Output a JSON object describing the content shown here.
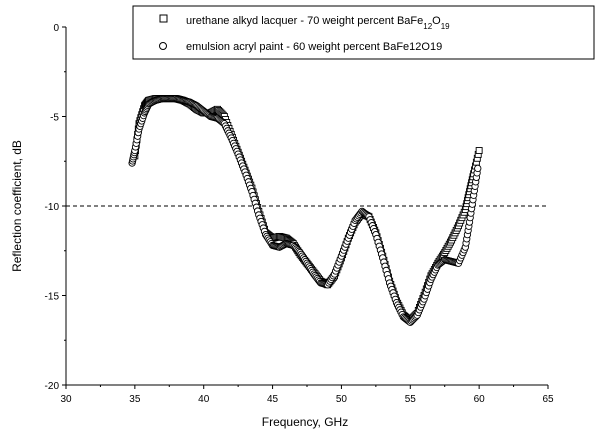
{
  "chart_data": {
    "type": "scatter",
    "xlabel": "Frequency, GHz",
    "ylabel": "Reflection coefficient, dB",
    "xlim": [
      30,
      65
    ],
    "ylim": [
      -20,
      0
    ],
    "xticks": [
      30,
      35,
      40,
      45,
      50,
      55,
      60,
      65
    ],
    "yticks": [
      0,
      -5,
      -10,
      -15,
      -20
    ],
    "xtick_labels": [
      "30",
      "35",
      "40",
      "45",
      "50",
      "55",
      "60",
      "65"
    ],
    "ytick_labels": [
      "0",
      "-5",
      "-10",
      "-15",
      "-20"
    ],
    "reference_line": {
      "y": -10,
      "style": "dashed"
    },
    "legend": {
      "placement": "top-right"
    },
    "series": [
      {
        "name": "urethane alkyd lacquer  - 70 weight percent BaFe12O19",
        "label_parts": {
          "text": "urethane alkyd lacquer  - 70 weight percent BaFe",
          "sub1": "12",
          "mid": "O",
          "sub2": "19"
        },
        "marker": "square",
        "x": [
          35,
          35.3,
          35.7,
          36,
          36.5,
          37,
          37.5,
          38,
          38.5,
          39,
          39.5,
          40,
          40.5,
          41,
          41.5,
          42,
          42.5,
          43,
          43.5,
          44,
          44.5,
          45,
          45.5,
          46,
          46.5,
          47,
          47.5,
          48,
          48.5,
          49,
          49.5,
          50,
          50.5,
          51,
          51.5,
          52,
          52.5,
          53,
          53.5,
          54,
          54.5,
          55,
          55.5,
          56,
          56.5,
          57,
          57.5,
          58,
          58.5,
          59,
          59.3,
          59.6,
          60
        ],
        "y": [
          -7.2,
          -5.4,
          -4.4,
          -4.1,
          -4.0,
          -4.0,
          -4.0,
          -4.0,
          -4.1,
          -4.3,
          -4.6,
          -4.8,
          -4.8,
          -4.6,
          -5.0,
          -6.0,
          -7.0,
          -8.0,
          -9.0,
          -10.3,
          -11.5,
          -11.8,
          -11.7,
          -11.8,
          -12.1,
          -12.7,
          -13.2,
          -13.7,
          -14.2,
          -14.4,
          -13.9,
          -12.9,
          -11.8,
          -10.9,
          -10.4,
          -10.6,
          -11.5,
          -12.8,
          -14.2,
          -15.3,
          -16.1,
          -16.4,
          -16.0,
          -15.0,
          -13.9,
          -13.2,
          -12.6,
          -11.9,
          -11.1,
          -10.2,
          -9.2,
          -8.2,
          -6.9
        ]
      },
      {
        "name": "emulsion acryl paint  - 60 weight percent BaFe12O19",
        "marker": "circle",
        "x": [
          34.8,
          35,
          35.3,
          35.7,
          36,
          36.5,
          37,
          37.5,
          38,
          38.5,
          39,
          39.5,
          40,
          40.5,
          41,
          41.5,
          42,
          42.5,
          43,
          43.5,
          44,
          44.5,
          45,
          45.5,
          46,
          46.5,
          47,
          47.5,
          48,
          48.5,
          49,
          49.5,
          50,
          50.5,
          51,
          51.5,
          52,
          52.5,
          53,
          53.5,
          54,
          54.5,
          55,
          55.5,
          56,
          56.5,
          57,
          57.5,
          58,
          58.5,
          59,
          59.3,
          59.6,
          59.9
        ],
        "y": [
          -7.6,
          -6.9,
          -5.7,
          -4.8,
          -4.3,
          -4.1,
          -4.0,
          -4.0,
          -4.0,
          -4.1,
          -4.2,
          -4.4,
          -4.7,
          -5.0,
          -5.1,
          -5.4,
          -6.2,
          -7.1,
          -8.1,
          -9.2,
          -10.5,
          -11.6,
          -12.2,
          -12.3,
          -12.1,
          -12.2,
          -12.6,
          -13.2,
          -13.8,
          -14.3,
          -14.4,
          -13.8,
          -12.8,
          -11.8,
          -10.8,
          -10.3,
          -10.6,
          -11.6,
          -12.9,
          -14.3,
          -15.4,
          -16.2,
          -16.5,
          -16.1,
          -15.2,
          -14.1,
          -13.3,
          -13.0,
          -13.1,
          -13.2,
          -12.3,
          -10.9,
          -9.4,
          -7.9
        ]
      }
    ]
  }
}
